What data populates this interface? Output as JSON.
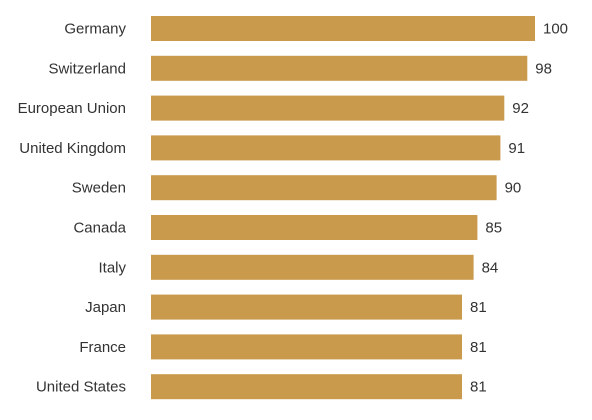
{
  "chart_data": {
    "type": "bar",
    "orientation": "horizontal",
    "categories": [
      "Germany",
      "Switzerland",
      "European Union",
      "United Kingdom",
      "Sweden",
      "Canada",
      "Italy",
      "Japan",
      "France",
      "United States"
    ],
    "values": [
      100,
      98,
      92,
      91,
      90,
      85,
      84,
      81,
      81,
      81
    ],
    "title": "",
    "xlabel": "",
    "ylabel": "",
    "xlim": [
      0,
      100
    ],
    "grid": false,
    "legend": "none",
    "bar_color": "#C99A4C"
  }
}
